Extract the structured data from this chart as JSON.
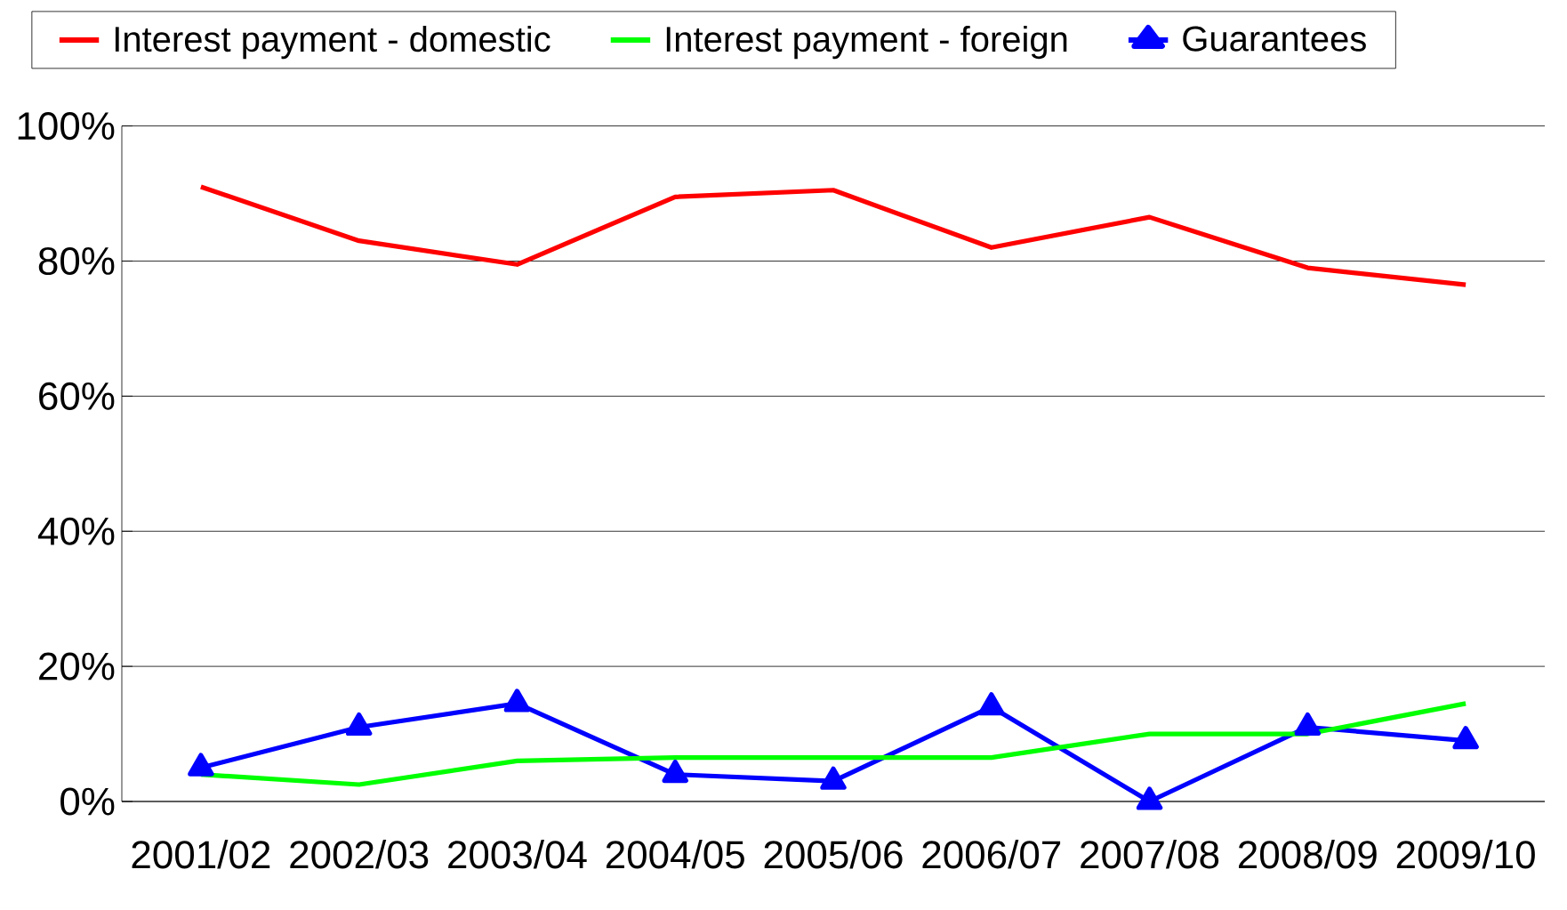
{
  "chart_data": {
    "type": "line",
    "categories": [
      "2001/02",
      "2002/03",
      "2003/04",
      "2004/05",
      "2005/06",
      "2006/07",
      "2007/08",
      "2008/09",
      "2009/10"
    ],
    "series": [
      {
        "name": "Interest payment - domestic",
        "color": "#ff0000",
        "marker": "none",
        "values": [
          91,
          83,
          79.5,
          89.5,
          90.5,
          82,
          86.5,
          79,
          76.5
        ]
      },
      {
        "name": "Interest payment - foreign",
        "color": "#00ff00",
        "marker": "none",
        "values": [
          4,
          2.5,
          6,
          6.5,
          6.5,
          6.5,
          10,
          10,
          14.5
        ]
      },
      {
        "name": "Guarantees",
        "color": "#0000ff",
        "marker": "triangle",
        "values": [
          5,
          11,
          14.5,
          4,
          3,
          14,
          0,
          11,
          9
        ]
      }
    ],
    "ylim": [
      0,
      100
    ],
    "yticks": [
      {
        "value": 0,
        "label": "0%"
      },
      {
        "value": 20,
        "label": "20%"
      },
      {
        "value": 40,
        "label": "40%"
      },
      {
        "value": 60,
        "label": "60%"
      },
      {
        "value": 80,
        "label": "80%"
      },
      {
        "value": 100,
        "label": "100%"
      }
    ],
    "grid": "y",
    "legend": "top",
    "line_style": "solid"
  }
}
